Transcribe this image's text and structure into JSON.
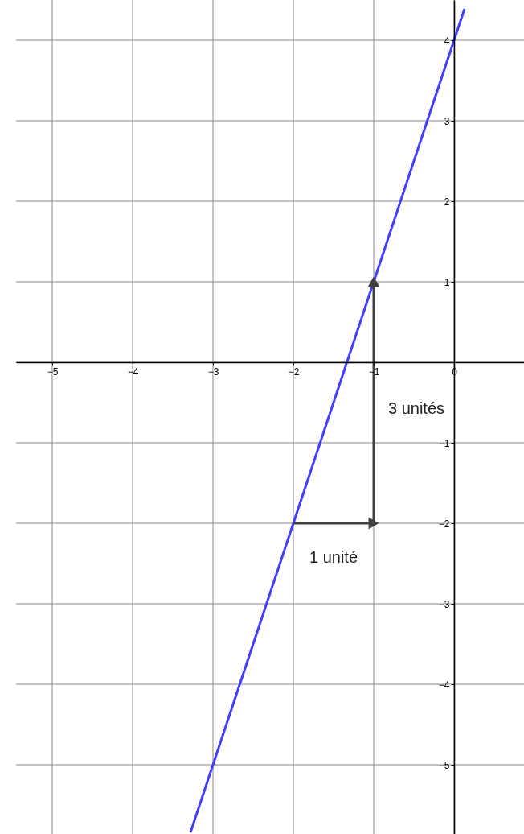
{
  "chart_data": {
    "type": "line",
    "xlim": [
      -5.45,
      0.87
    ],
    "ylim": [
      -5.86,
      4.5
    ],
    "xticks": [
      -5,
      -4,
      -3,
      -2,
      -1,
      0
    ],
    "yticks": [
      -5,
      -4,
      -3,
      -2,
      -1,
      {
        "value": 0,
        "label": null
      },
      1,
      2,
      3,
      4
    ],
    "grid": true,
    "series": [
      {
        "color": "#4040ff",
        "x": [
          -3.28,
          -3,
          -2,
          -1,
          0,
          0.13
        ],
        "values": [
          -5.84,
          -5,
          -2,
          1,
          4,
          4.39
        ]
      },
      {
        "color": "#404040",
        "x": [
          -2,
          -1
        ],
        "values": [
          -2,
          -2
        ],
        "marker": "triangle"
      },
      {
        "color": "#404040",
        "x": [
          -1,
          -1
        ],
        "values": [
          -2,
          1
        ],
        "marker": "triangle"
      }
    ],
    "annotations": [
      {
        "text": "3 unités",
        "x": -1,
        "y": -0.58
      },
      {
        "text": "1 unité",
        "x": -1.5,
        "y": -2
      }
    ]
  }
}
